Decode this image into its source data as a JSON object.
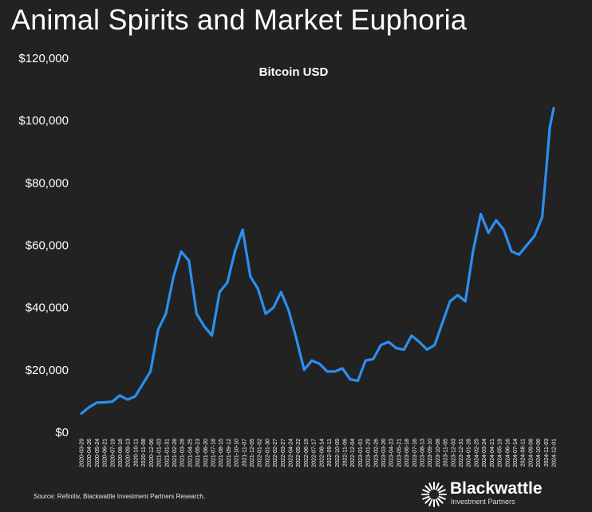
{
  "slide": {
    "title": "Animal Spirits and Market Euphoria"
  },
  "footer": {
    "source": "Source: Refinitiv, Blackwattle Investment Partners Research,",
    "logo_name": "Blackwattle",
    "logo_tagline": "Investment Partners"
  },
  "colors": {
    "background": "#222222",
    "line": "#2b8ff0",
    "text": "#ffffff"
  },
  "chart_data": {
    "type": "line",
    "title": "Bitcoin USD",
    "xlabel": "",
    "ylabel": "",
    "ylim": [
      0,
      120000
    ],
    "yticks": [
      0,
      20000,
      40000,
      60000,
      80000,
      100000,
      120000
    ],
    "ytick_labels": [
      "$0",
      "$20,000",
      "$40,000",
      "$60,000",
      "$80,000",
      "$100,000",
      "$120,000"
    ],
    "grid": false,
    "legend": "none",
    "xtick_labels": [
      "2020-03-29",
      "2020-04-26",
      "2020-05-24",
      "2020-06-21",
      "2020-07-19",
      "2020-08-16",
      "2020-09-13",
      "2020-10-11",
      "2020-11-08",
      "2020-12-06",
      "2021-01-03",
      "2021-01-31",
      "2021-02-28",
      "2021-03-28",
      "2021-04-25",
      "2021-05-23",
      "2021-06-20",
      "2021-07-18",
      "2021-08-15",
      "2021-09-12",
      "2021-10-10",
      "2021-11-07",
      "2021-12-05",
      "2022-01-02",
      "2022-01-30",
      "2022-02-27",
      "2022-03-27",
      "2022-04-24",
      "2022-05-22",
      "2022-06-19",
      "2022-07-17",
      "2022-08-14",
      "2022-09-11",
      "2022-10-09",
      "2022-11-06",
      "2022-12-04",
      "2023-01-01",
      "2023-01-29",
      "2023-02-26",
      "2023-03-26",
      "2023-04-23",
      "2023-05-21",
      "2023-06-18",
      "2023-07-16",
      "2023-08-13",
      "2023-09-10",
      "2023-10-08",
      "2023-11-05",
      "2023-12-03",
      "2023-12-31",
      "2024-01-28",
      "2024-02-25",
      "2024-03-24",
      "2024-04-21",
      "2024-05-19",
      "2024-06-16",
      "2024-07-14",
      "2024-08-11",
      "2024-09-08",
      "2024-10-06",
      "2024-11-03",
      "2024-12-01"
    ],
    "series": [
      {
        "x": [
          "2020-03-29",
          "2020-04-26",
          "2020-05-24",
          "2020-06-21",
          "2020-07-19",
          "2020-08-16",
          "2020-09-13",
          "2020-10-11",
          "2020-11-08",
          "2020-12-06",
          "2021-01-03",
          "2021-01-31",
          "2021-02-28",
          "2021-03-28",
          "2021-04-25",
          "2021-05-23",
          "2021-06-20",
          "2021-07-18",
          "2021-08-15",
          "2021-09-12",
          "2021-10-10",
          "2021-11-07",
          "2021-12-05",
          "2022-01-02",
          "2022-01-30",
          "2022-02-27",
          "2022-03-27",
          "2022-04-24",
          "2022-05-22",
          "2022-06-19",
          "2022-07-17",
          "2022-08-14",
          "2022-09-11",
          "2022-10-09",
          "2022-11-06",
          "2022-12-04",
          "2023-01-01",
          "2023-01-29",
          "2023-02-26",
          "2023-03-26",
          "2023-04-23",
          "2023-05-21",
          "2023-06-18",
          "2023-07-16",
          "2023-08-13",
          "2023-09-10",
          "2023-10-08",
          "2023-11-05",
          "2023-12-03",
          "2023-12-31",
          "2024-01-28",
          "2024-02-25",
          "2024-03-24",
          "2024-04-21",
          "2024-05-19",
          "2024-06-16",
          "2024-07-14",
          "2024-08-11",
          "2024-09-08",
          "2024-10-06",
          "2024-11-03",
          "2024-12-01",
          "2024-12-15"
        ],
        "values": [
          6000,
          8000,
          9500,
          9600,
          9800,
          11800,
          10500,
          11500,
          15500,
          19500,
          33000,
          38000,
          50000,
          58000,
          55000,
          38000,
          34000,
          31000,
          45000,
          48000,
          58000,
          65000,
          50000,
          46000,
          38000,
          40000,
          45000,
          39000,
          30000,
          20000,
          23000,
          22000,
          19500,
          19500,
          20500,
          17000,
          16500,
          23000,
          23500,
          28000,
          29000,
          27000,
          26500,
          31000,
          29000,
          26500,
          28000,
          35000,
          42000,
          44000,
          42000,
          58000,
          70000,
          64000,
          68000,
          65000,
          58000,
          57000,
          60000,
          63000,
          69000,
          98000,
          104000
        ]
      }
    ]
  }
}
